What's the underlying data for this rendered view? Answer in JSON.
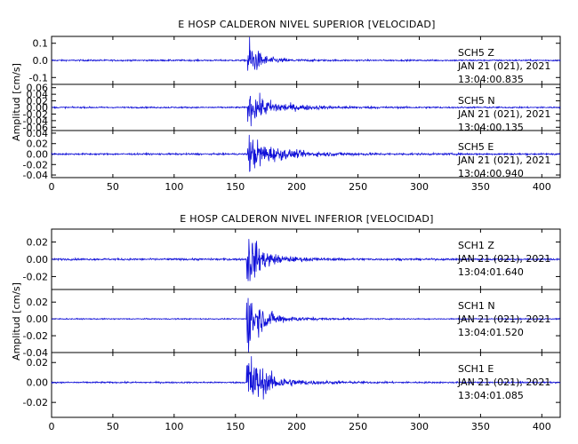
{
  "chart_data": [
    {
      "type": "line",
      "title": "E HOSP CALDERON NIVEL SUPERIOR [VELOCIDAD]",
      "ylabel": "Amplitud [cm/s]",
      "xlabel": "",
      "xlim": [
        0,
        415
      ],
      "xticks": [
        0,
        50,
        100,
        150,
        200,
        250,
        300,
        350,
        400
      ],
      "grid": false,
      "traces": [
        {
          "station": "SCH5",
          "component": "Z",
          "date": "JAN 21 (021), 2021",
          "time": "13:04:00.835",
          "ylim": [
            -0.14,
            0.14
          ],
          "yticks": [
            -0.1,
            0.0,
            0.1
          ],
          "ytick_labels": [
            "-0.1",
            "0.0",
            "0.1"
          ],
          "onset_s": 160,
          "peak": 0.12,
          "noise": 0.004,
          "coda_s": 18
        },
        {
          "station": "SCH5",
          "component": "N",
          "date": "JAN 21 (021), 2021",
          "time": "13:04:00.135",
          "ylim": [
            -0.07,
            0.07
          ],
          "yticks": [
            -0.06,
            -0.04,
            -0.02,
            0.0,
            0.02,
            0.04,
            0.06
          ],
          "ytick_labels": [
            "-0.06",
            "-0.04",
            "-0.02",
            "0.00",
            "0.02",
            "0.04",
            "0.06"
          ],
          "onset_s": 160,
          "peak": 0.04,
          "noise": 0.002,
          "coda_s": 45
        },
        {
          "station": "SCH5",
          "component": "E",
          "date": "JAN 21 (021), 2021",
          "time": "13:04:00.940",
          "ylim": [
            -0.045,
            0.045
          ],
          "yticks": [
            -0.04,
            -0.02,
            0.0,
            0.02,
            0.04
          ],
          "ytick_labels": [
            "-0.04",
            "-0.02",
            "0.00",
            "0.02",
            "0.04"
          ],
          "onset_s": 160,
          "peak": 0.03,
          "noise": 0.0015,
          "coda_s": 45
        }
      ]
    },
    {
      "type": "line",
      "title": "E HOSP CALDERON NIVEL INFERIOR [VELOCIDAD]",
      "ylabel": "Amplitud [cm/s]",
      "xlabel": "",
      "xlim": [
        0,
        415
      ],
      "xticks": [
        0,
        50,
        100,
        150,
        200,
        250,
        300,
        350,
        400
      ],
      "grid": false,
      "traces": [
        {
          "station": "SCH1",
          "component": "Z",
          "date": "JAN 21 (021), 2021",
          "time": "13:04:01.640",
          "ylim": [
            -0.035,
            0.035
          ],
          "yticks": [
            -0.02,
            0.0,
            0.02
          ],
          "ytick_labels": [
            "-0.02",
            "0.00",
            "0.02"
          ],
          "onset_s": 159,
          "peak": 0.03,
          "noise": 0.001,
          "coda_s": 25
        },
        {
          "station": "SCH1",
          "component": "N",
          "date": "JAN 21 (021), 2021",
          "time": "13:04:01.520",
          "ylim": [
            -0.04,
            0.035
          ],
          "yticks": [
            -0.04,
            -0.02,
            0.0,
            0.02
          ],
          "ytick_labels": [
            "-0.04",
            "-0.02",
            "0.00",
            "0.02"
          ],
          "onset_s": 159,
          "peak": 0.035,
          "noise": 0.0006,
          "coda_s": 25
        },
        {
          "station": "SCH1",
          "component": "E",
          "date": "JAN 21 (021), 2021",
          "time": "13:04:01.085",
          "ylim": [
            -0.035,
            0.03
          ],
          "yticks": [
            -0.02,
            0.0,
            0.02
          ],
          "ytick_labels": [
            "-0.02",
            "0.00",
            "0.02"
          ],
          "onset_s": 159,
          "peak": 0.03,
          "noise": 0.0007,
          "coda_s": 30
        }
      ]
    }
  ],
  "colors": {
    "trace": "#1010d8",
    "axis": "#000000"
  }
}
